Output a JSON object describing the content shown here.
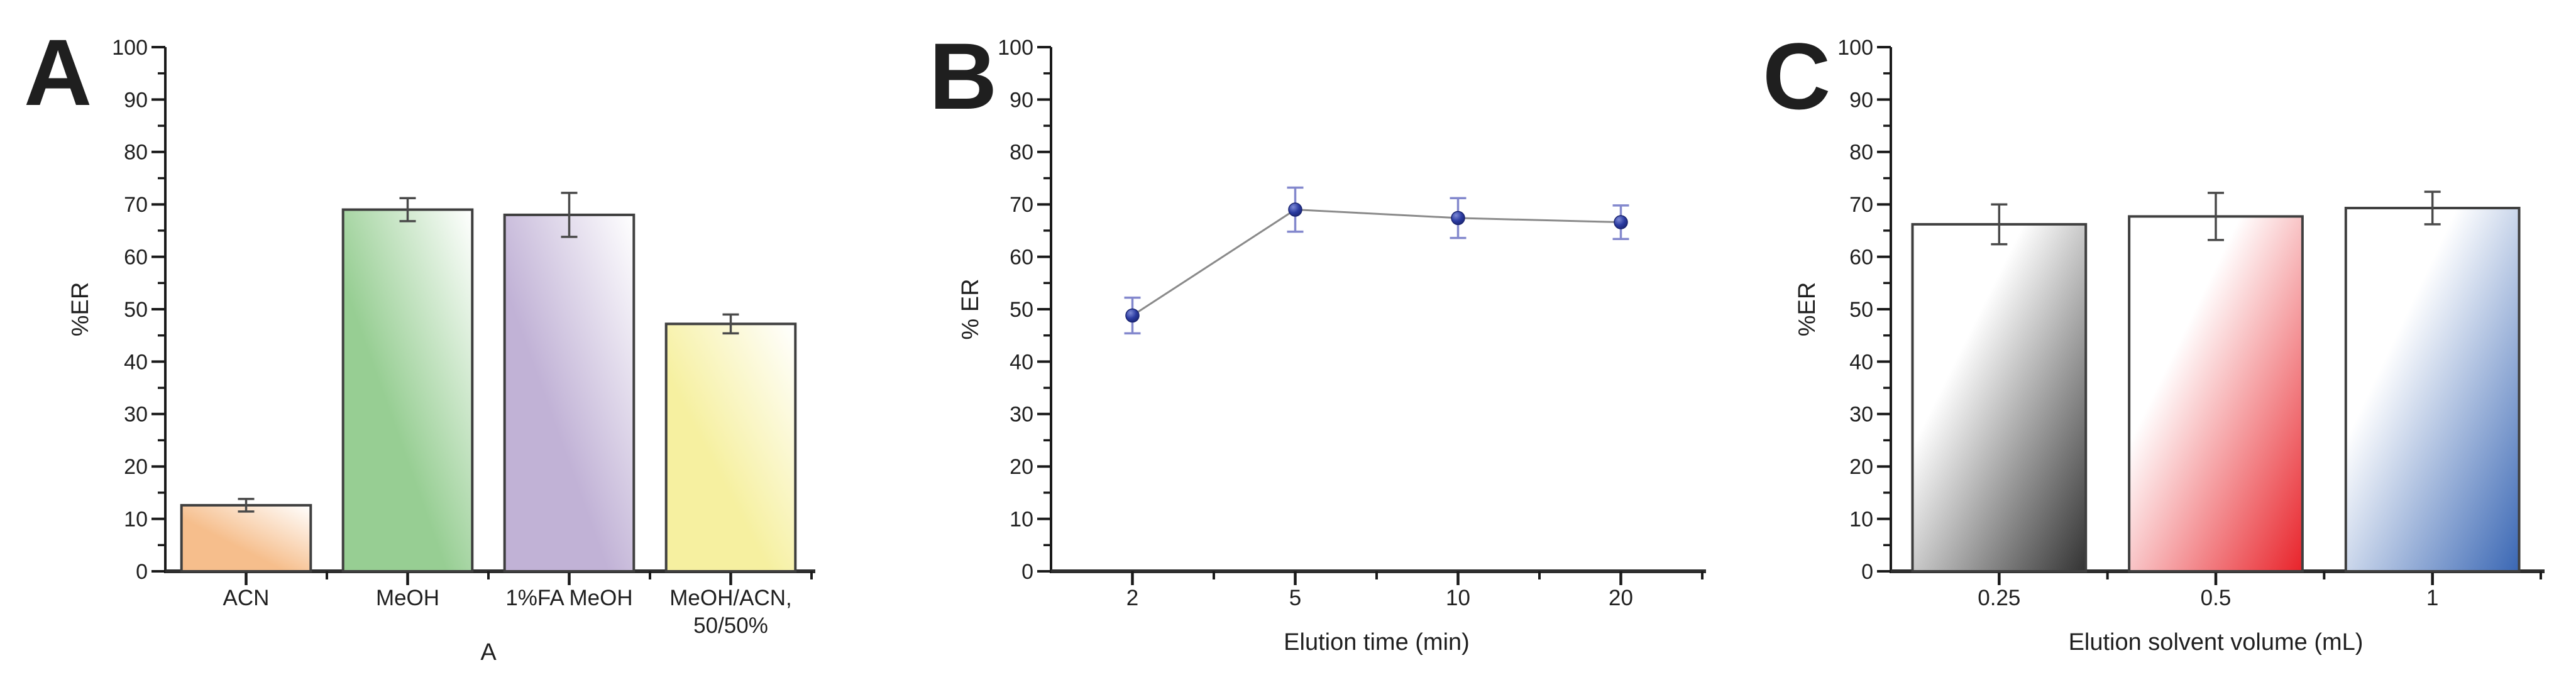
{
  "figure": {
    "background": "#ffffff",
    "text_color": "#1f1f1f",
    "axis_color": "#2e2e2e"
  },
  "chart_data": [
    {
      "type": "bar",
      "panel_letter": "A",
      "title": "",
      "xlabel": "A",
      "ylabel": "%ER",
      "ylim": [
        0,
        100
      ],
      "yticks": [
        0,
        10,
        20,
        30,
        40,
        50,
        60,
        70,
        80,
        90,
        100
      ],
      "yminor_interval": 5,
      "grid": false,
      "legend": null,
      "categories": [
        "ACN",
        "MeOH",
        "1%FA MeOH",
        "MeOH/ACN,\n50/50%"
      ],
      "values": [
        12.6,
        69.0,
        68.0,
        47.2
      ],
      "errors": [
        1.2,
        2.2,
        4.2,
        1.8
      ],
      "bar_colors": [
        "#F6BE8C",
        "#97CE93",
        "#C1B2D6",
        "#F6F0A0"
      ],
      "bar_outline_color": "#3f3f3f",
      "error_color": "#4a4a4a",
      "gradient_style": "color-bottom-left-to-white-top-right"
    },
    {
      "type": "line",
      "panel_letter": "B",
      "title": "",
      "xlabel": "Elution time (min)",
      "ylabel": "% ER",
      "ylim": [
        0,
        100
      ],
      "yticks": [
        0,
        10,
        20,
        30,
        40,
        50,
        60,
        70,
        80,
        90,
        100
      ],
      "yminor_interval": 5,
      "grid": false,
      "legend": null,
      "x_scale": "categorical",
      "x": [
        2,
        5,
        10,
        20
      ],
      "categories": [
        "2",
        "5",
        "10",
        "20"
      ],
      "values": [
        48.8,
        69.0,
        67.4,
        66.6
      ],
      "errors": [
        3.4,
        4.2,
        3.8,
        3.2
      ],
      "marker_color": "#2A3AA0",
      "marker_highlight": "#7D8AD6",
      "marker_edge_color": "#1A2470",
      "error_color": "#8388CD",
      "line_color": "#8A8A8A"
    },
    {
      "type": "bar",
      "panel_letter": "C",
      "title": "",
      "xlabel": "Elution solvent volume (mL)",
      "ylabel": "%ER",
      "ylim": [
        0,
        100
      ],
      "yticks": [
        0,
        10,
        20,
        30,
        40,
        50,
        60,
        70,
        80,
        90,
        100
      ],
      "yminor_interval": 5,
      "grid": false,
      "legend": null,
      "categories": [
        "0.25",
        "0.5",
        "1"
      ],
      "values": [
        66.2,
        67.7,
        69.3
      ],
      "errors": [
        3.8,
        4.5,
        3.1
      ],
      "bar_colors": [
        "#333333",
        "#E8232A",
        "#3A67B4"
      ],
      "bar_outline_color": "#3f3f3f",
      "error_color": "#4a4a4a",
      "gradient_style": "white-top-left-to-color-bottom-right"
    }
  ]
}
